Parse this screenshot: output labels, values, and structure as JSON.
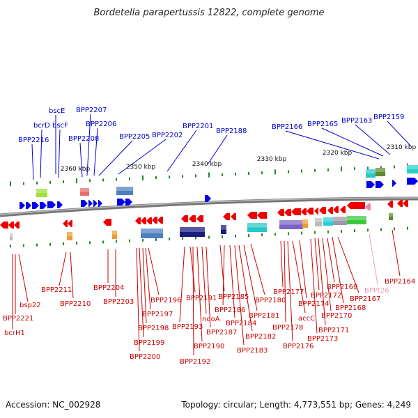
{
  "title": "Bordetella parapertussis 12822, complete genome",
  "footer": {
    "accession": "Accession: NC_002928",
    "summary": "Topology: circular; Length: 4,773,551 bp; Genes: 4,249"
  },
  "colors": {
    "forward": "#0000ee",
    "reverse": "#ee0000",
    "trna": "#ee88aa",
    "backbone": "#888888",
    "tick": "#228822"
  },
  "ruler": [
    "2360 kbp",
    "2350 kbp",
    "2340 kbp",
    "2330 kbp",
    "2320 kbp",
    "2310 kbp"
  ],
  "forward_labels": [
    "bscE",
    "bcrD",
    "bscF",
    "BPP2216",
    "BPP2207",
    "BPP2206",
    "BPP2208",
    "BPP2205",
    "BPP2202",
    "BPP2201",
    "BPP2188",
    "BPP2166",
    "BPP2165",
    "BPP2163",
    "BPP2159"
  ],
  "reverse_labels": [
    "BPP2211",
    "bsp22",
    "BPP2221",
    "bcrH1",
    "BPP2210",
    "BPP2204",
    "BPP2203",
    "BPP2196",
    "BPP2197",
    "BPP2198",
    "BPP2199",
    "BPP2200",
    "BPP2193",
    "BPP2191",
    "BPP2192",
    "BPP2190",
    "ndoA",
    "BPP2187",
    "BPP2185",
    "BPP2186",
    "BPP2184",
    "BPP2183",
    "BPP2182",
    "BPP2181",
    "BPP2180",
    "BPP2177",
    "BPP2178",
    "BPP2176",
    "accC",
    "BPP2174",
    "BPP2173",
    "BPP2172",
    "BPP2171",
    "BPP2170",
    "BPP2169",
    "BPP2168",
    "BPP2167",
    "BPPt26",
    "BPP2164"
  ]
}
